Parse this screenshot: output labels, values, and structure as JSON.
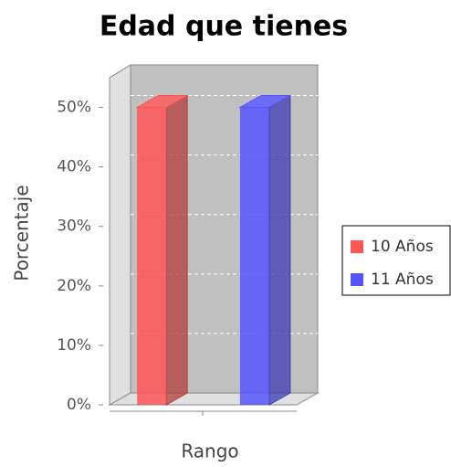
{
  "chart_data": {
    "type": "bar3d",
    "title": "Edad que tienes",
    "x_label": "Rango",
    "y_label": "Porcentaje",
    "categories": [
      null
    ],
    "series": [
      {
        "name": "10 Años",
        "color": "#ff5555",
        "values": [
          50
        ]
      },
      {
        "name": "11 Años",
        "color": "#5555ff",
        "values": [
          50
        ]
      }
    ],
    "ylim": [
      0,
      55
    ],
    "yticks": [
      {
        "value": 0,
        "label": "0%"
      },
      {
        "value": 10,
        "label": "10%"
      },
      {
        "value": 20,
        "label": "20%"
      },
      {
        "value": 30,
        "label": "30%"
      },
      {
        "value": 40,
        "label": "40%"
      },
      {
        "value": 50,
        "label": "50%"
      }
    ],
    "grid": true,
    "legend": "right"
  }
}
